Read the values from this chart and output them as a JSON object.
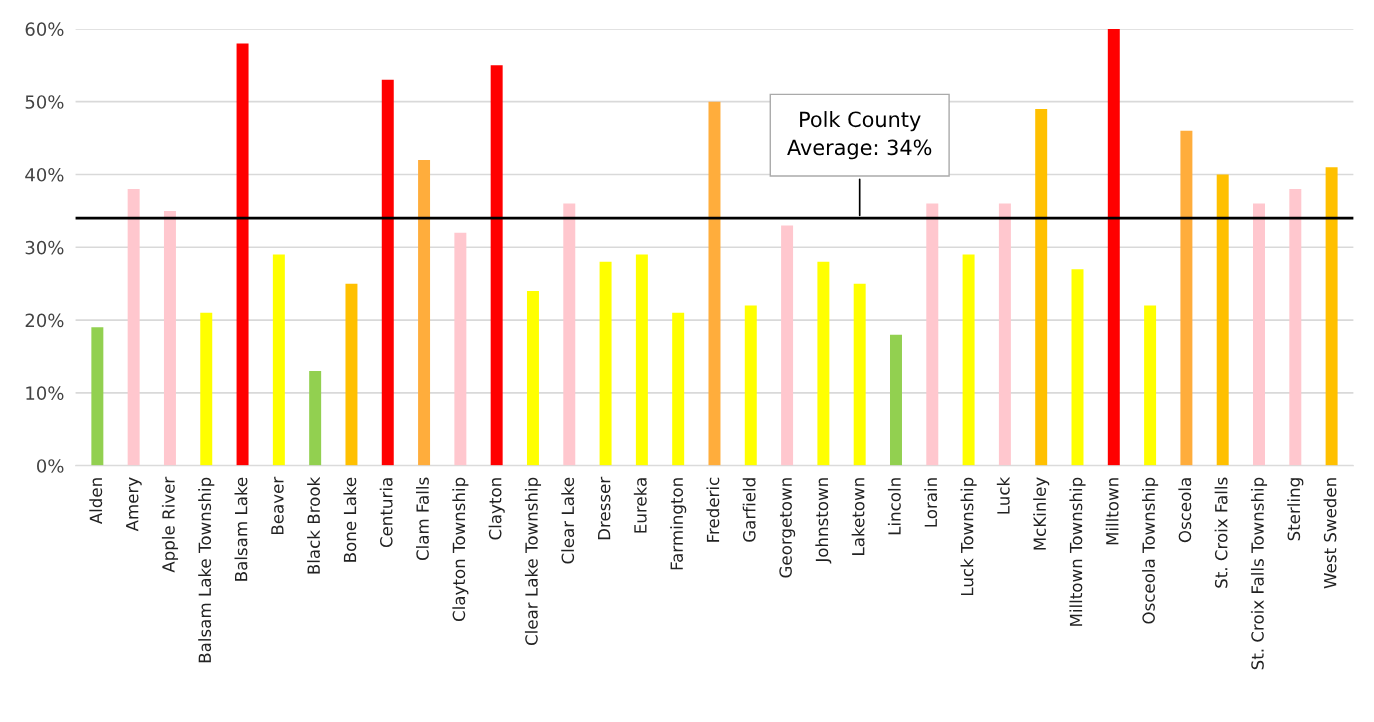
{
  "chart_data": {
    "type": "bar",
    "categories": [
      "Alden",
      "Amery",
      "Apple River",
      "Balsam Lake Township",
      "Balsam Lake",
      "Beaver",
      "Black Brook",
      "Bone Lake",
      "Centuria",
      "Clam Falls",
      "Clayton Township",
      "Clayton",
      "Clear Lake Township",
      "Clear Lake",
      "Dresser",
      "Eureka",
      "Farmington",
      "Frederic",
      "Garfield",
      "Georgetown",
      "Johnstown",
      "Laketown",
      "Lincoln",
      "Lorain",
      "Luck Township",
      "Luck",
      "McKinley",
      "Milltown Township",
      "Milltown",
      "Osceola Township",
      "Osceola",
      "St. Croix Falls",
      "St. Croix Falls Township",
      "Sterling",
      "West Sweden"
    ],
    "values": [
      19,
      38,
      35,
      21,
      58,
      29,
      13,
      25,
      53,
      42,
      32,
      55,
      24,
      36,
      28,
      29,
      21,
      50,
      22,
      33,
      28,
      25,
      18,
      36,
      29,
      36,
      49,
      27,
      60,
      22,
      46,
      40,
      36,
      38,
      41
    ],
    "colors": [
      "#92d050",
      "#ffc7ce",
      "#ffc7ce",
      "#ffff00",
      "#ff0000",
      "#ffff00",
      "#92d050",
      "#ffc000",
      "#ff0000",
      "#ffad3c",
      "#ffc7ce",
      "#ff0000",
      "#ffff00",
      "#ffc7ce",
      "#ffff00",
      "#ffff00",
      "#ffff00",
      "#ffad3c",
      "#ffff00",
      "#ffc7ce",
      "#ffff00",
      "#ffff00",
      "#92d050",
      "#ffc7ce",
      "#ffff00",
      "#ffc7ce",
      "#ffc000",
      "#ffff00",
      "#ff0000",
      "#ffff00",
      "#ffad3c",
      "#ffc000",
      "#ffc7ce",
      "#ffc7ce",
      "#ffc000"
    ],
    "ylim": [
      0,
      60
    ],
    "yticks": [
      {
        "value": 0,
        "label": "0%"
      },
      {
        "value": 10,
        "label": "10%"
      },
      {
        "value": 20,
        "label": "20%"
      },
      {
        "value": 30,
        "label": "30%"
      },
      {
        "value": 40,
        "label": "40%"
      },
      {
        "value": 50,
        "label": "50%"
      },
      {
        "value": 60,
        "label": "60%"
      }
    ],
    "grid": "y",
    "ref_lines": [
      {
        "axis": "y",
        "value": 34,
        "label": "Polk County\nAverage: 34%",
        "color": "#000000"
      }
    ]
  }
}
